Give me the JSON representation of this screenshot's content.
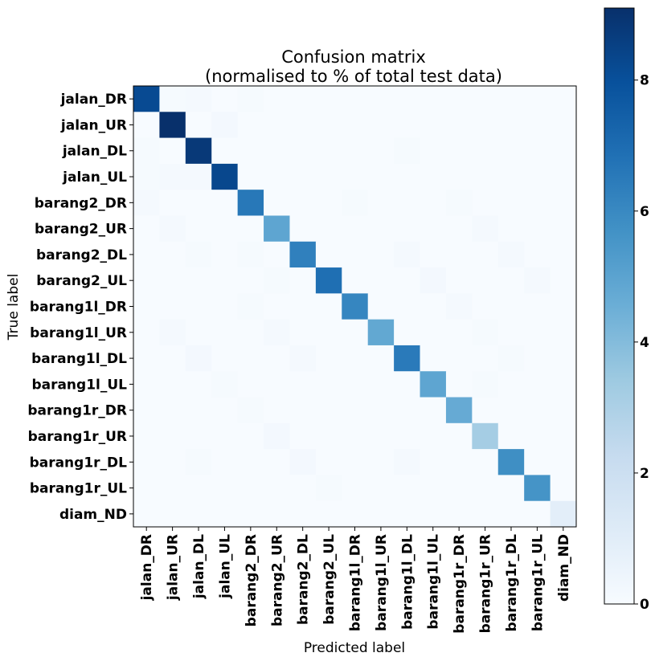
{
  "chart_data": {
    "type": "heatmap",
    "title": "Confusion matrix",
    "subtitle": "(normalised to % of total test data)",
    "xlabel": "Predicted label",
    "ylabel": "True label",
    "labels": [
      "jalan_DR",
      "jalan_UR",
      "jalan_DL",
      "jalan_UL",
      "barang2_DR",
      "barang2_UR",
      "barang2_DL",
      "barang2_UL",
      "barang1l_DR",
      "barang1l_UR",
      "barang1l_DL",
      "barang1l_UL",
      "barang1r_DR",
      "barang1r_UR",
      "barang1r_DL",
      "barang1r_UL",
      "diam_ND"
    ],
    "colorbar": {
      "min": 0,
      "max": 9.1,
      "ticks": [
        0,
        2,
        4,
        6,
        8
      ],
      "colormap": "Blues"
    },
    "matrix": [
      [
        8.2,
        0.1,
        0.15,
        0,
        0.1,
        0,
        0,
        0,
        0,
        0,
        0,
        0,
        0,
        0,
        0,
        0,
        0
      ],
      [
        0,
        9.1,
        0,
        0.2,
        0,
        0,
        0,
        0,
        0,
        0,
        0,
        0,
        0,
        0,
        0,
        0,
        0
      ],
      [
        0.1,
        0,
        8.8,
        0,
        0,
        0,
        0,
        0,
        0,
        0,
        0.1,
        0,
        0,
        0,
        0,
        0,
        0
      ],
      [
        0.1,
        0.15,
        0.15,
        8.3,
        0,
        0,
        0,
        0,
        0,
        0,
        0,
        0,
        0,
        0,
        0,
        0,
        0
      ],
      [
        0.15,
        0,
        0,
        0,
        6.6,
        0,
        0,
        0,
        0.1,
        0,
        0,
        0,
        0.1,
        0,
        0,
        0,
        0
      ],
      [
        0,
        0.15,
        0,
        0,
        0,
        4.9,
        0,
        0,
        0,
        0,
        0,
        0,
        0,
        0.15,
        0,
        0,
        0
      ],
      [
        0,
        0,
        0.1,
        0,
        0.1,
        0,
        6.3,
        0,
        0,
        0,
        0.15,
        0,
        0,
        0,
        0.15,
        0,
        0
      ],
      [
        0,
        0,
        0,
        0,
        0,
        0.1,
        0,
        6.9,
        0,
        0,
        0,
        0.2,
        0,
        0,
        0,
        0.15,
        0
      ],
      [
        0,
        0,
        0,
        0,
        0.1,
        0,
        0,
        0,
        6.1,
        0,
        0,
        0,
        0.15,
        0,
        0,
        0,
        0
      ],
      [
        0,
        0.15,
        0,
        0,
        0,
        0.15,
        0,
        0,
        0,
        4.8,
        0,
        0,
        0,
        0.1,
        0,
        0,
        0
      ],
      [
        0,
        0,
        0.2,
        0,
        0,
        0,
        0.15,
        0,
        0,
        0,
        6.5,
        0,
        0,
        0,
        0.1,
        0,
        0
      ],
      [
        0,
        0,
        0,
        0.1,
        0,
        0,
        0,
        0,
        0,
        0,
        0,
        4.9,
        0,
        0.1,
        0,
        0,
        0
      ],
      [
        0,
        0,
        0,
        0,
        0.1,
        0,
        0,
        0,
        0,
        0,
        0,
        0,
        4.7,
        0,
        0,
        0,
        0
      ],
      [
        0,
        0,
        0,
        0,
        0,
        0.2,
        0,
        0,
        0,
        0,
        0,
        0,
        0,
        3.2,
        0,
        0,
        0
      ],
      [
        0,
        0,
        0.1,
        0,
        0,
        0,
        0.2,
        0,
        0,
        0,
        0.15,
        0,
        0,
        0,
        5.8,
        0,
        0
      ],
      [
        0,
        0,
        0,
        0,
        0,
        0,
        0,
        0.1,
        0,
        0,
        0,
        0,
        0,
        0,
        0,
        5.6,
        0
      ],
      [
        0,
        0,
        0,
        0,
        0,
        0,
        0,
        0,
        0,
        0,
        0,
        0,
        0,
        0,
        0,
        0,
        0.9
      ]
    ]
  }
}
